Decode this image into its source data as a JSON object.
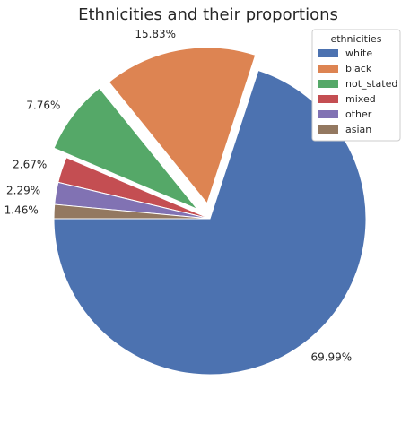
{
  "chart_data": {
    "type": "pie",
    "title": "Ethnicities and their proportions",
    "legend_title": "ethnicities",
    "legend_position": "top-right",
    "slices": [
      {
        "label": "white",
        "value": 69.99,
        "pct_label": "69.99%",
        "color": "#4c72b0",
        "exploded": false
      },
      {
        "label": "black",
        "value": 15.83,
        "pct_label": "15.83%",
        "color": "#dd8452",
        "exploded": true
      },
      {
        "label": "not_stated",
        "value": 7.76,
        "pct_label": "7.76%",
        "color": "#55a868",
        "exploded": true
      },
      {
        "label": "mixed",
        "value": 2.67,
        "pct_label": "2.67%",
        "color": "#c44e52",
        "exploded": false
      },
      {
        "label": "other",
        "value": 2.29,
        "pct_label": "2.29%",
        "color": "#8172b3",
        "exploded": false
      },
      {
        "label": "asian",
        "value": 1.46,
        "pct_label": "1.46%",
        "color": "#937860",
        "exploded": false
      }
    ]
  }
}
